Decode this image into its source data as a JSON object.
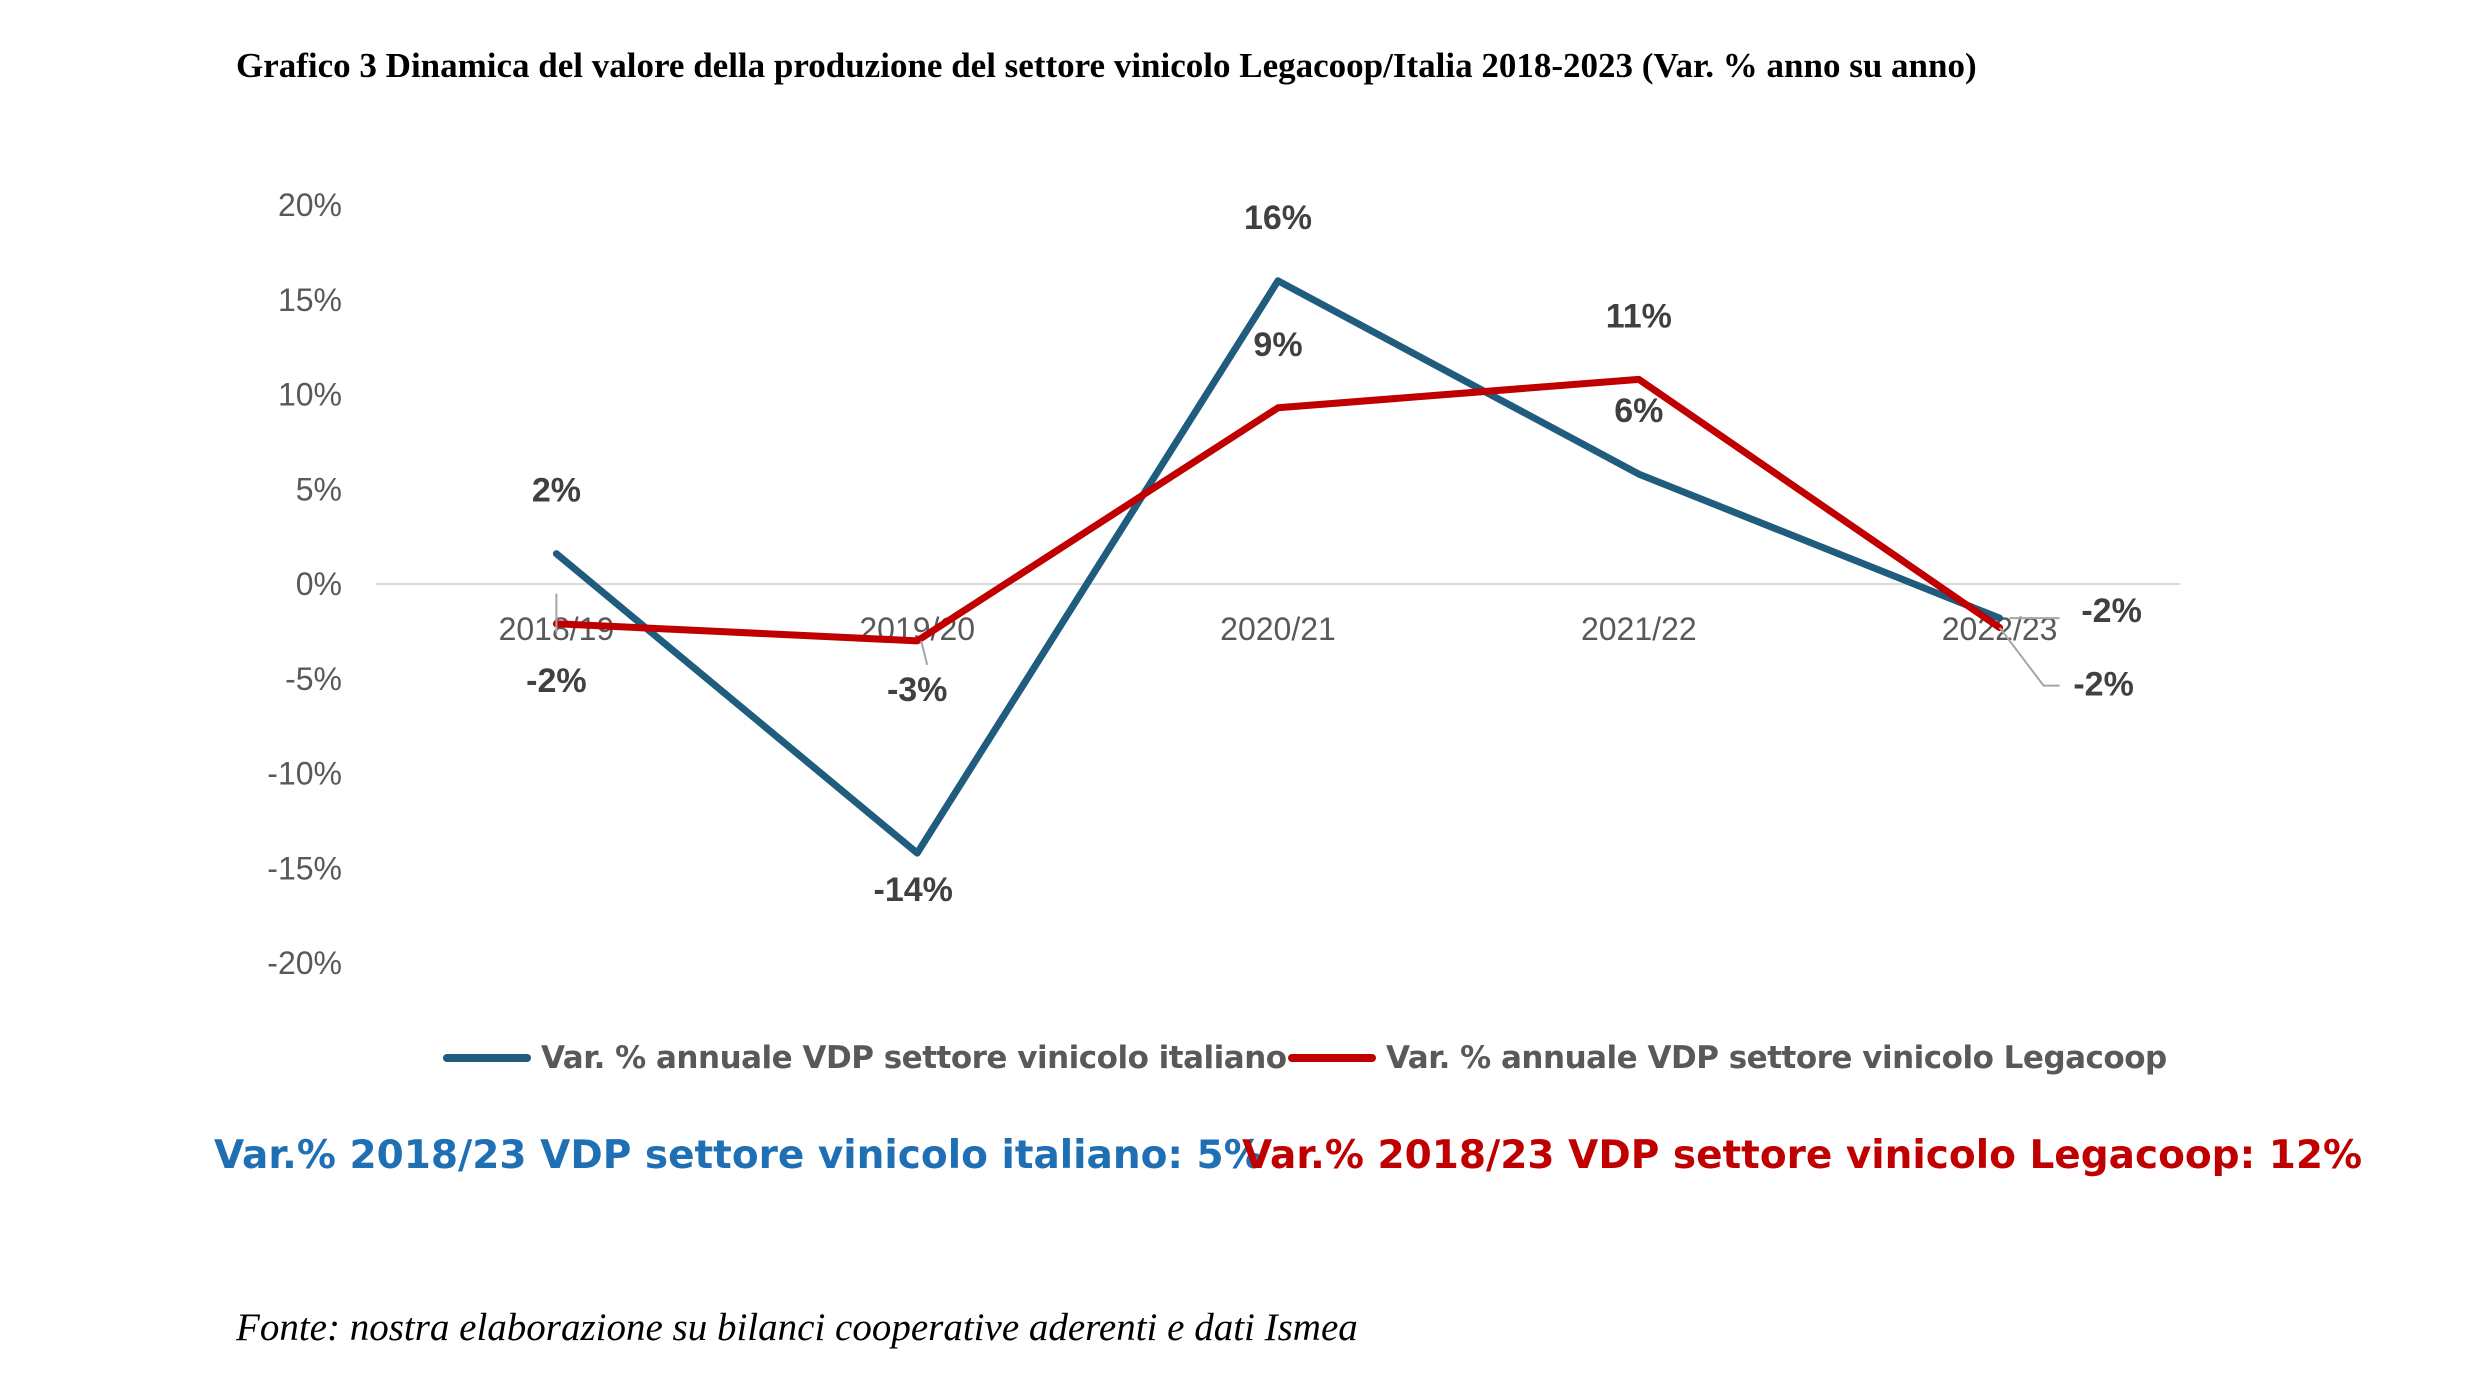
{
  "chart_data": {
    "type": "line",
    "title": "Grafico 3 Dinamica del valore della produzione del settore vinicolo Legacoop/Italia 2018-2023 (Var. % anno su anno)",
    "categories": [
      "2018/19",
      "2019/20",
      "2020/21",
      "2021/22",
      "2022/23"
    ],
    "y_ticks": [
      "20%",
      "15%",
      "10%",
      "5%",
      "0%",
      "-5%",
      "-10%",
      "-15%",
      "-20%"
    ],
    "ylim": [
      -20,
      20
    ],
    "grid": false,
    "legend_position": "bottom",
    "series": [
      {
        "name": "Var. % annuale VDP settore vinicolo italiano",
        "color": "#1F5C7D",
        "values": [
          1.6,
          -14.2,
          16.0,
          5.8,
          -1.8
        ],
        "labels": [
          "2%",
          "-14%",
          "16%",
          "6%",
          "-2%"
        ]
      },
      {
        "name": "Var. % annuale VDP settore vinicolo Legacoop",
        "color": "#C00000",
        "values": [
          -2.1,
          -3.0,
          9.3,
          10.8,
          -2.3
        ],
        "labels": [
          "-2%",
          "-3%",
          "9%",
          "11%",
          "-2%"
        ]
      }
    ]
  },
  "summary": {
    "italiano": "Var.% 2018/23 VDP settore vinicolo italiano: 5%",
    "italiano_color": "#1F6FB4",
    "legacoop": "Var.% 2018/23 VDP settore vinicolo Legacoop: 12%",
    "legacoop_color": "#C00000"
  },
  "source": "Fonte: nostra elaborazione su bilanci cooperative aderenti e dati Ismea"
}
